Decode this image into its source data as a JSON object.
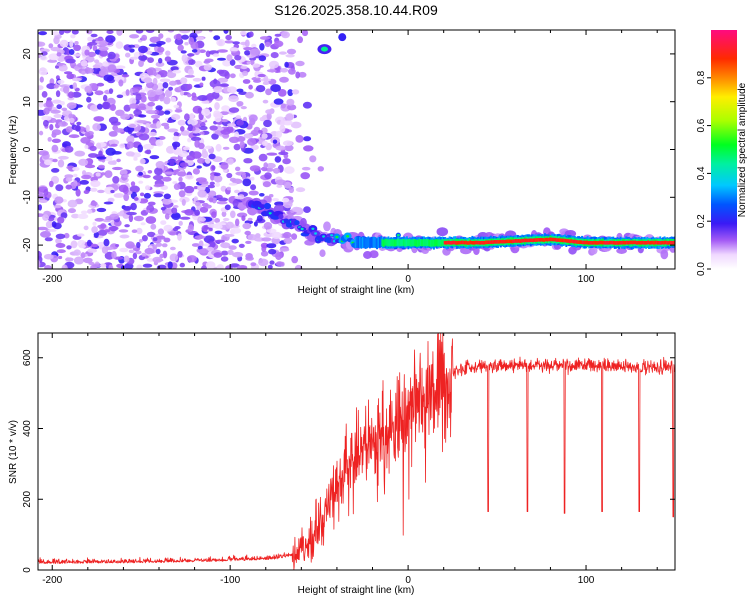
{
  "title": "S126.2025.358.10.44.R09",
  "chart_data": [
    {
      "type": "heatmap",
      "name": "spectrogram",
      "xlabel": "Height of straight line (km)",
      "ylabel": "Frequency (Hz)",
      "xlim": [
        -208,
        150
      ],
      "ylim": [
        -25,
        25
      ],
      "xticks": [
        "-200",
        "-100",
        "0",
        "100"
      ],
      "xtick_values": [
        -200,
        -100,
        0,
        100
      ],
      "yticks": [
        "-20",
        "-10",
        "0",
        "10",
        "20"
      ],
      "ytick_values": [
        -20,
        -10,
        0,
        10,
        20
      ],
      "colorbar": {
        "label": "Normalized spectral amplitude",
        "range": [
          0,
          1
        ],
        "ticks": [
          "0.0",
          "0.2",
          "0.4",
          "0.6",
          "0.8"
        ],
        "tick_values": [
          0,
          0.2,
          0.4,
          0.6,
          0.8
        ]
      },
      "noise_region": {
        "x_from": -208,
        "x_to": -65
      },
      "track": {
        "description": "tone descending from about -12 Hz near -85 km to about -19 Hz, then nearly constant",
        "points": [
          [
            -85,
            -12
          ],
          [
            -65,
            -15
          ],
          [
            -50,
            -18
          ],
          [
            -30,
            -19.5
          ],
          [
            0,
            -19.5
          ],
          [
            40,
            -19.5
          ],
          [
            80,
            -18.8
          ],
          [
            100,
            -19.5
          ],
          [
            150,
            -19.5
          ]
        ],
        "peak_segment_x": [
          20,
          150
        ]
      },
      "isolated_blob": {
        "x": -47,
        "y": 21
      }
    },
    {
      "type": "line",
      "name": "snr",
      "xlabel": "Height of straight line (km)",
      "ylabel": "SNR (10 * v/v)",
      "xlim": [
        -208,
        150
      ],
      "ylim": [
        0,
        670
      ],
      "xticks": [
        "-200",
        "-100",
        "0",
        "100"
      ],
      "xtick_values": [
        -200,
        -100,
        0,
        100
      ],
      "yticks": [
        "0",
        "200",
        "400",
        "600"
      ],
      "ytick_values": [
        0,
        200,
        400,
        600
      ],
      "color": "#ee2222",
      "profile_points": [
        [
          -208,
          18
        ],
        [
          -150,
          20
        ],
        [
          -100,
          25
        ],
        [
          -75,
          30
        ],
        [
          -65,
          40
        ],
        [
          -55,
          80
        ],
        [
          -45,
          180
        ],
        [
          -35,
          280
        ],
        [
          -25,
          330
        ],
        [
          -15,
          380
        ],
        [
          -5,
          420
        ],
        [
          5,
          470
        ],
        [
          15,
          520
        ],
        [
          25,
          560
        ],
        [
          35,
          575
        ],
        [
          60,
          580
        ],
        [
          100,
          580
        ],
        [
          150,
          570
        ]
      ],
      "dropouts": [
        {
          "x": 45,
          "y": 165
        },
        {
          "x": 67,
          "y": 165
        },
        {
          "x": 88,
          "y": 160
        },
        {
          "x": 109,
          "y": 165
        },
        {
          "x": 130,
          "y": 165
        },
        {
          "x": 149,
          "y": 150
        }
      ]
    }
  ]
}
